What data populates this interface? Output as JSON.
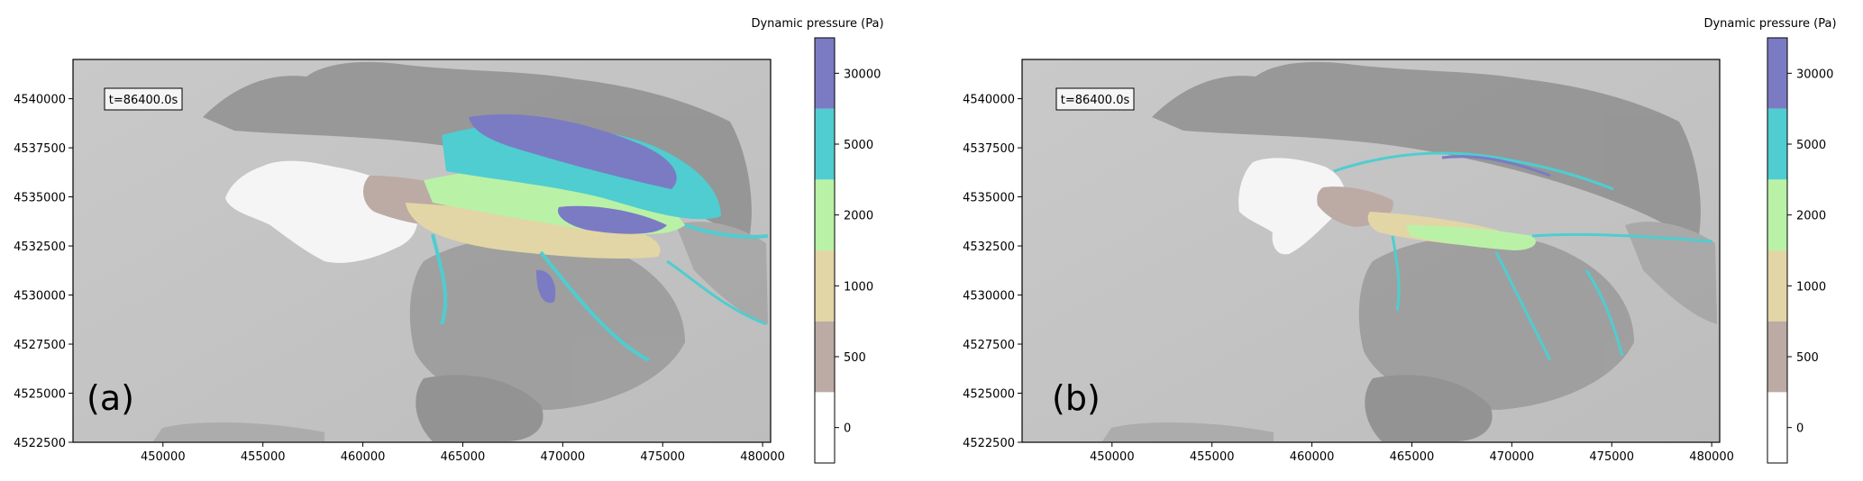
{
  "chart_data": [
    {
      "type": "heatmap",
      "panel_label": "(a)",
      "time_label": "t=86400.0s",
      "colorbar_title": "Dynamic pressure (Pa)",
      "xlim": [
        445500,
        480400
      ],
      "ylim": [
        4522500,
        4542000
      ],
      "x_ticks": [
        "450000",
        "455000",
        "460000",
        "465000",
        "470000",
        "475000",
        "480000"
      ],
      "y_ticks": [
        "4522500",
        "4525000",
        "4527500",
        "4530000",
        "4532500",
        "4535000",
        "4537500",
        "4540000"
      ],
      "colorbar_levels": [
        {
          "label": "0",
          "color": "#ffffff"
        },
        {
          "label": "500",
          "color": "#bcaaa4"
        },
        {
          "label": "1000",
          "color": "#e2d6a6"
        },
        {
          "label": "2000",
          "color": "#b9f2a6"
        },
        {
          "label": "5000",
          "color": "#4fcdd0"
        },
        {
          "label": "30000",
          "color": "#7b7bc4"
        }
      ]
    },
    {
      "type": "heatmap",
      "panel_label": "(b)",
      "time_label": "t=86400.0s",
      "colorbar_title": "Dynamic pressure (Pa)",
      "xlim": [
        445500,
        480400
      ],
      "ylim": [
        4522500,
        4542000
      ],
      "x_ticks": [
        "450000",
        "455000",
        "460000",
        "465000",
        "470000",
        "475000",
        "480000"
      ],
      "y_ticks": [
        "4522500",
        "4525000",
        "4527500",
        "4530000",
        "4532500",
        "4535000",
        "4537500",
        "4540000"
      ],
      "colorbar_levels": [
        {
          "label": "0",
          "color": "#ffffff"
        },
        {
          "label": "500",
          "color": "#bcaaa4"
        },
        {
          "label": "1000",
          "color": "#e2d6a6"
        },
        {
          "label": "2000",
          "color": "#b9f2a6"
        },
        {
          "label": "5000",
          "color": "#4fcdd0"
        },
        {
          "label": "30000",
          "color": "#7b7bc4"
        }
      ]
    }
  ]
}
